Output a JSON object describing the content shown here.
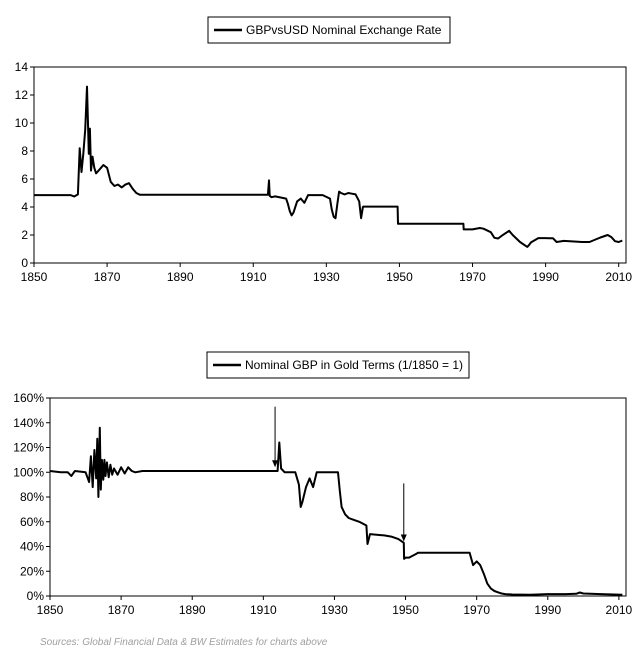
{
  "chart_data": [
    {
      "type": "line",
      "legend": "GBPvsUSD Nominal Exchange Rate",
      "legend_position": "top-center",
      "grid": false,
      "xlim": [
        1850,
        2012
      ],
      "ylim": [
        0,
        14
      ],
      "x_ticks": [
        1850,
        1870,
        1890,
        1910,
        1930,
        1950,
        1970,
        1990,
        2010
      ],
      "y_ticks": [
        0,
        2,
        4,
        6,
        8,
        10,
        12,
        14
      ],
      "y_tick_labels": [
        "0",
        "2",
        "4",
        "6",
        "8",
        "10",
        "12",
        "14"
      ],
      "series": [
        {
          "name": "GBPvsUSD Nominal Exchange Rate",
          "x": [
            1850,
            1855,
            1860,
            1861,
            1862,
            1862.5,
            1863,
            1863.5,
            1864,
            1864.5,
            1865,
            1865.3,
            1865.6,
            1866,
            1866.5,
            1867,
            1868,
            1869,
            1870,
            1871,
            1872,
            1873,
            1874,
            1875,
            1876,
            1877,
            1878,
            1879,
            1885,
            1895,
            1905,
            1914,
            1914.3,
            1914.5,
            1915,
            1916,
            1919,
            1919.5,
            1920,
            1920.5,
            1921,
            1922,
            1923,
            1924,
            1925,
            1929,
            1931,
            1931.5,
            1932,
            1932.5,
            1933,
            1933.5,
            1934,
            1935,
            1936,
            1937,
            1938,
            1939,
            1939.5,
            1940,
            1940.1,
            1949.5,
            1949.6,
            1967.5,
            1967.6,
            1970,
            1972,
            1973,
            1975,
            1976,
            1977,
            1978,
            1980,
            1981,
            1983,
            1985,
            1985.5,
            1986,
            1988,
            1990,
            1991,
            1992,
            1993,
            1995,
            2000,
            2002,
            2005,
            2007,
            2008,
            2009,
            2010,
            2011
          ],
          "values": [
            4.85,
            4.85,
            4.85,
            4.75,
            4.9,
            8.2,
            6.5,
            7.8,
            9.5,
            12.6,
            7.8,
            9.6,
            6.6,
            7.6,
            6.8,
            6.4,
            6.7,
            7.0,
            6.8,
            5.8,
            5.5,
            5.6,
            5.4,
            5.6,
            5.7,
            5.3,
            5.0,
            4.87,
            4.87,
            4.87,
            4.87,
            4.87,
            5.9,
            4.8,
            4.7,
            4.76,
            4.6,
            4.2,
            3.7,
            3.4,
            3.6,
            4.4,
            4.6,
            4.3,
            4.85,
            4.85,
            4.6,
            3.8,
            3.3,
            3.2,
            4.2,
            5.1,
            5.0,
            4.9,
            5.0,
            4.95,
            4.9,
            4.4,
            3.2,
            4.0,
            4.03,
            4.03,
            2.8,
            2.8,
            2.4,
            2.4,
            2.5,
            2.45,
            2.2,
            1.8,
            1.75,
            1.95,
            2.3,
            2.0,
            1.5,
            1.15,
            1.3,
            1.47,
            1.78,
            1.78,
            1.77,
            1.77,
            1.5,
            1.58,
            1.5,
            1.5,
            1.82,
            2.0,
            1.85,
            1.56,
            1.5,
            1.6
          ]
        }
      ]
    },
    {
      "type": "line",
      "legend": "Nominal GBP in Gold Terms (1/1850 = 1)",
      "legend_position": "top-center",
      "grid": false,
      "xlim": [
        1850,
        2012
      ],
      "ylim": [
        0,
        160
      ],
      "x_ticks": [
        1850,
        1870,
        1890,
        1910,
        1930,
        1950,
        1970,
        1990,
        2010
      ],
      "y_ticks": [
        0,
        20,
        40,
        60,
        80,
        100,
        120,
        140,
        160
      ],
      "y_tick_labels": [
        "0%",
        "20%",
        "40%",
        "60%",
        "80%",
        "100%",
        "120%",
        "140%",
        "160%"
      ],
      "annotations": [
        {
          "type": "arrow",
          "x": 1913.3,
          "from_y": 153,
          "to_y": 104
        },
        {
          "type": "arrow",
          "x": 1949.5,
          "from_y": 91,
          "to_y": 44
        }
      ],
      "series": [
        {
          "name": "Nominal GBP in Gold Terms (1/1850 = 1)",
          "x": [
            1850,
            1853,
            1855,
            1856,
            1857,
            1860,
            1861,
            1861.5,
            1862,
            1862.5,
            1863,
            1863.3,
            1863.6,
            1864,
            1864.3,
            1864.6,
            1865,
            1865.3,
            1865.6,
            1866,
            1866.5,
            1867,
            1867.5,
            1868,
            1869,
            1870,
            1871,
            1872,
            1873,
            1874,
            1876,
            1878,
            1880,
            1890,
            1900,
            1913,
            1914,
            1914.5,
            1915,
            1916,
            1918,
            1919,
            1920,
            1920.5,
            1921,
            1922,
            1923,
            1924,
            1925,
            1931,
            1931.5,
            1932,
            1933,
            1934,
            1935,
            1937,
            1939,
            1939.3,
            1940,
            1944,
            1946,
            1948,
            1949.5,
            1949.6,
            1950,
            1951,
            1953,
            1953.5,
            1962,
            1968,
            1969,
            1970,
            1971,
            1972,
            1973,
            1974,
            1975,
            1976,
            1977,
            1978,
            1980,
            1985,
            1990,
            1995,
            1998,
            1999,
            2000,
            2005,
            2011
          ],
          "values": [
            101,
            100,
            100,
            97,
            101,
            100,
            92,
            113,
            88,
            118,
            95,
            127,
            80,
            136,
            86,
            110,
            94,
            110,
            97,
            108,
            96,
            106,
            98,
            103,
            98,
            104,
            99,
            104,
            101,
            100,
            101,
            101,
            101,
            101,
            101,
            101,
            101,
            124,
            103,
            100,
            100,
            100,
            90,
            72,
            76,
            88,
            95,
            88,
            100,
            100,
            85,
            72,
            66,
            63,
            62,
            60,
            57,
            42,
            50,
            49,
            48,
            46,
            43,
            30,
            31,
            31,
            34,
            35,
            35,
            35,
            25,
            28,
            25,
            18,
            10,
            6,
            4,
            3,
            2,
            1.5,
            1.2,
            1.0,
            1.5,
            1.5,
            1.8,
            2.8,
            2.0,
            1.5,
            1.0
          ]
        }
      ]
    }
  ],
  "source_text": "Sources: Global Financial Data & BW Estimates for charts above"
}
